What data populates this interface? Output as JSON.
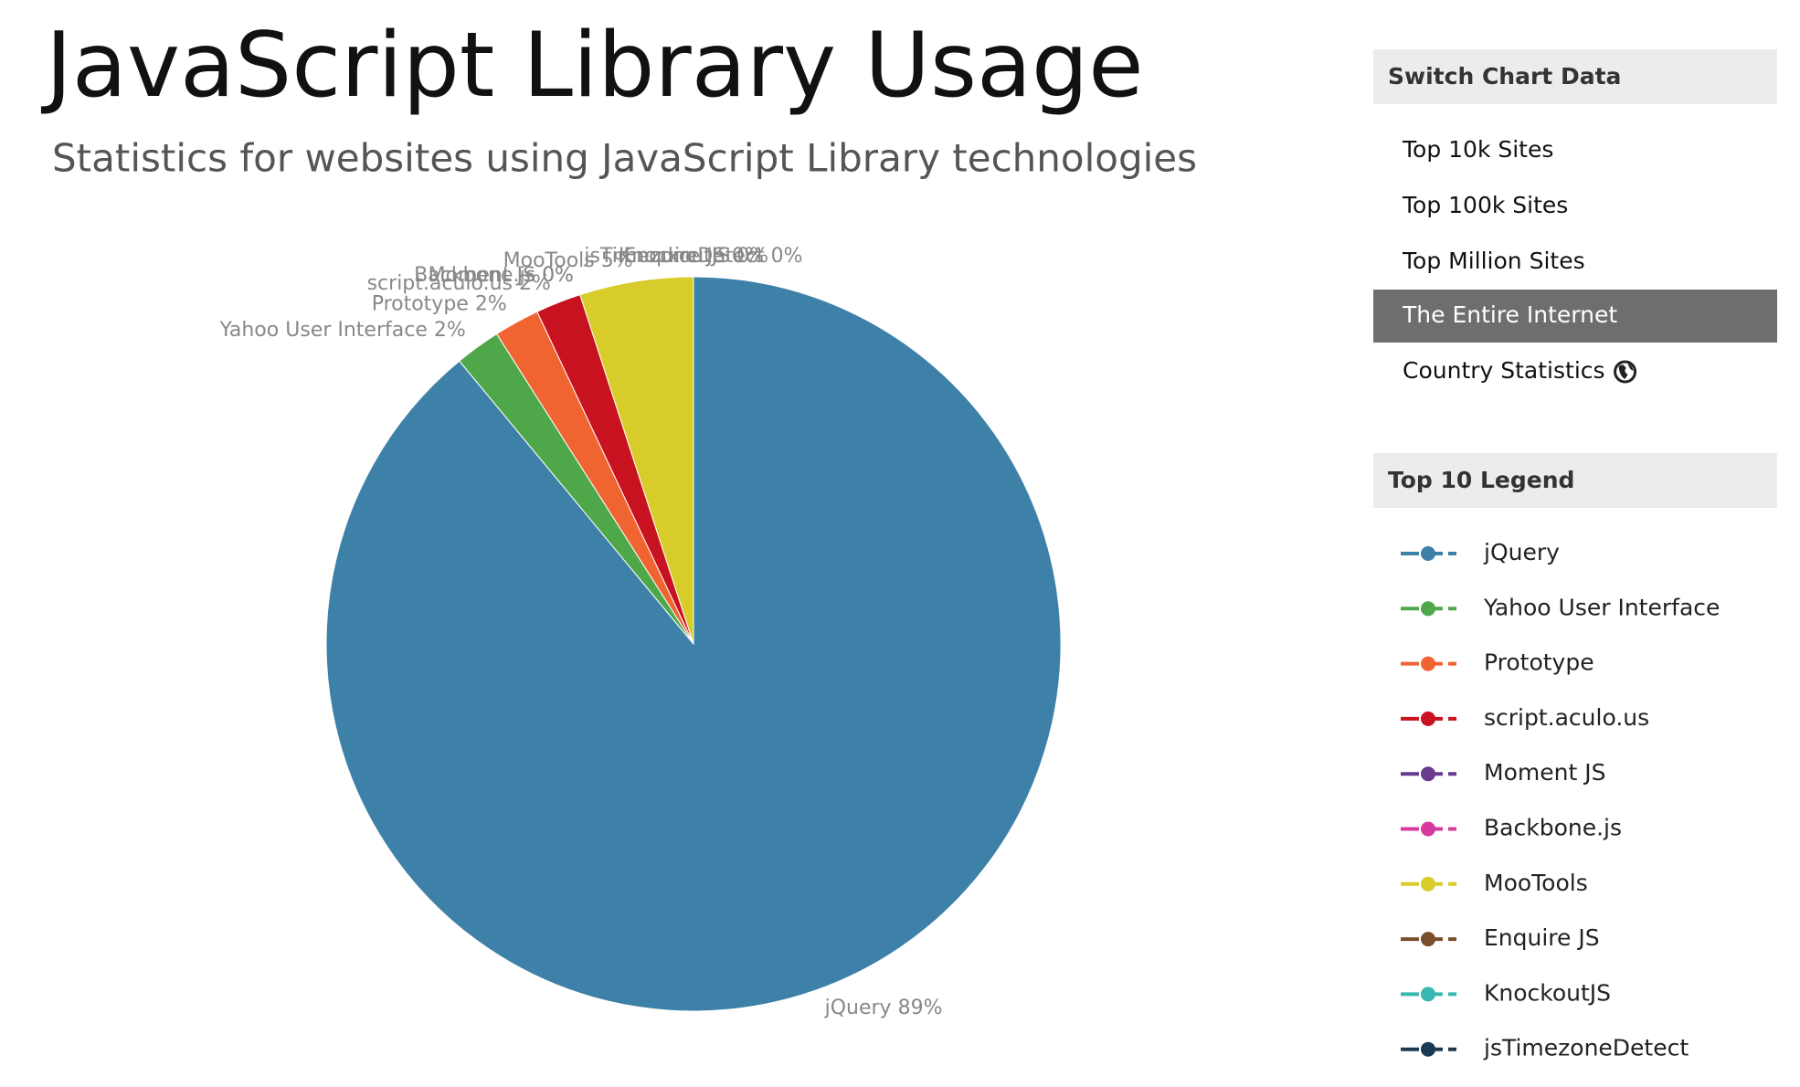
{
  "chart_data": {
    "type": "pie",
    "title": "JavaScript Library Usage",
    "subtitle": "Statistics for websites using JavaScript Library technologies",
    "categories": [
      "jQuery",
      "Yahoo User Interface",
      "Prototype",
      "script.aculo.us",
      "Moment JS",
      "Backbone.js",
      "MooTools",
      "Enquire JS",
      "KnockoutJS",
      "jsTimezoneDetect"
    ],
    "values": [
      89,
      2,
      2,
      2,
      0,
      0,
      5,
      0,
      0,
      0
    ],
    "value_labels": [
      "89%",
      "2%",
      "2%",
      "2%",
      "0%",
      "0%",
      "5%",
      "0%",
      "0%",
      "0%"
    ],
    "colors": [
      "#3d80a8",
      "#4ea84a",
      "#f06432",
      "#c8121f",
      "#6a3a8e",
      "#d63a9c",
      "#d8cc2a",
      "#7a4e2b",
      "#36b8b0",
      "#1b3a52"
    ]
  },
  "sidebar": {
    "switch_title": "Switch Chart Data",
    "options": [
      "Top 10k Sites",
      "Top 100k Sites",
      "Top Million Sites",
      "The Entire Internet",
      "Country Statistics"
    ],
    "active_option": 3,
    "legend_title": "Top 10 Legend"
  }
}
